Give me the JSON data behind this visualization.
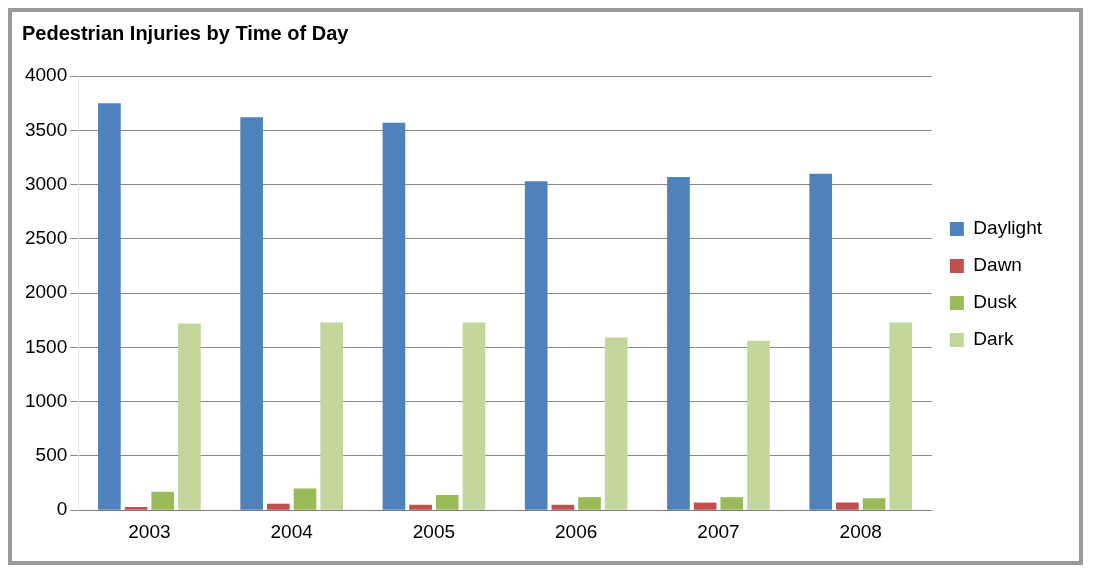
{
  "chart_data": {
    "type": "bar",
    "title": "Pedestrian Injuries by Time of Day",
    "categories": [
      "2003",
      "2004",
      "2005",
      "2006",
      "2007",
      "2008"
    ],
    "series": [
      {
        "name": "Daylight",
        "color": "#4f81bd",
        "values": [
          3750,
          3620,
          3570,
          3030,
          3070,
          3100
        ]
      },
      {
        "name": "Dawn",
        "color": "#c0504d",
        "values": [
          30,
          60,
          50,
          50,
          70,
          70
        ]
      },
      {
        "name": "Dusk",
        "color": "#9bbb59",
        "values": [
          170,
          200,
          140,
          120,
          120,
          110
        ]
      },
      {
        "name": "Dark",
        "color": "#c3d69b",
        "values": [
          1720,
          1730,
          1730,
          1590,
          1560,
          1730
        ]
      }
    ],
    "ylim": [
      0,
      4000
    ],
    "yticks": [
      0,
      500,
      1000,
      1500,
      2000,
      2500,
      3000,
      3500,
      4000
    ],
    "grid": "y",
    "legend": "right"
  }
}
